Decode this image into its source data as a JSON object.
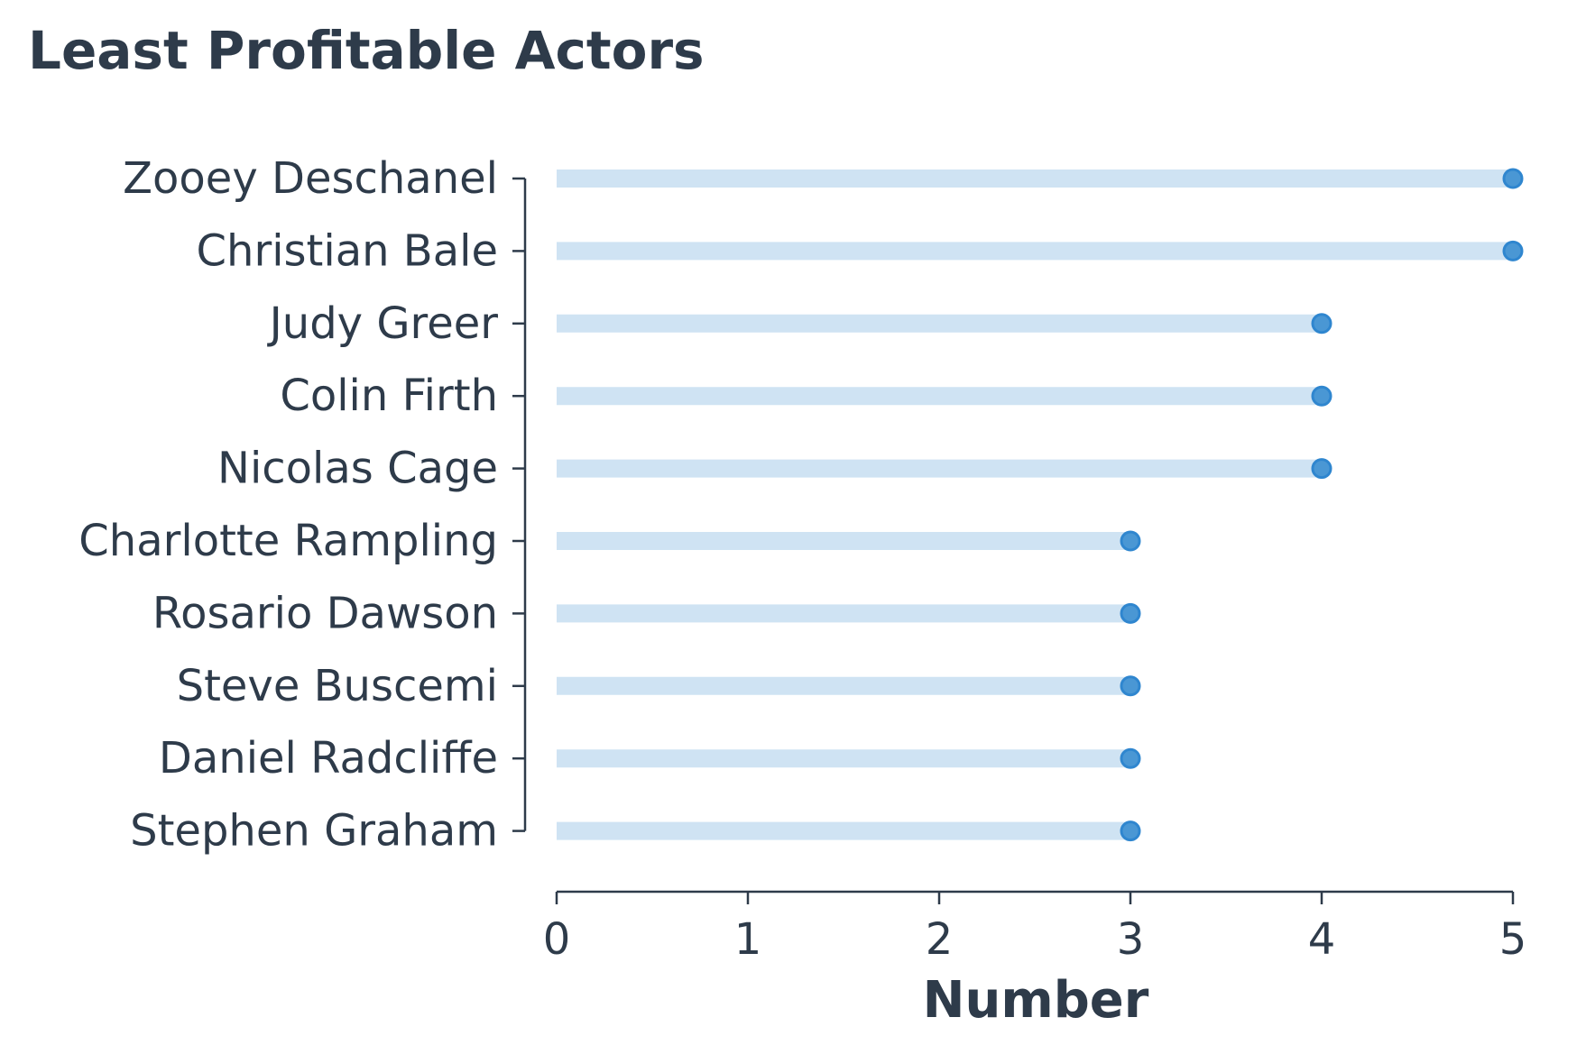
{
  "chart_data": {
    "type": "lollipop",
    "orientation": "horizontal",
    "title": "Least Profitable Actors",
    "xlabel": "Number",
    "ylabel": "",
    "xlim": [
      0,
      5
    ],
    "xticks": [
      0,
      1,
      2,
      3,
      4,
      5
    ],
    "categories": [
      "Zooey Deschanel",
      "Christian Bale",
      "Judy Greer",
      "Colin Firth",
      "Nicolas Cage",
      "Charlotte Rampling",
      "Rosario Dawson",
      "Steve Buscemi",
      "Daniel Radcliffe",
      "Stephen Graham"
    ],
    "values": [
      5,
      5,
      4,
      4,
      4,
      3,
      3,
      3,
      3,
      3
    ],
    "grid": false,
    "colors": {
      "stem": "#cfe3f3",
      "marker_fill": "#4a97d4",
      "marker_edge": "#2f86cf",
      "text": "#2e3b4a",
      "axis": "#2e3b4a"
    }
  }
}
